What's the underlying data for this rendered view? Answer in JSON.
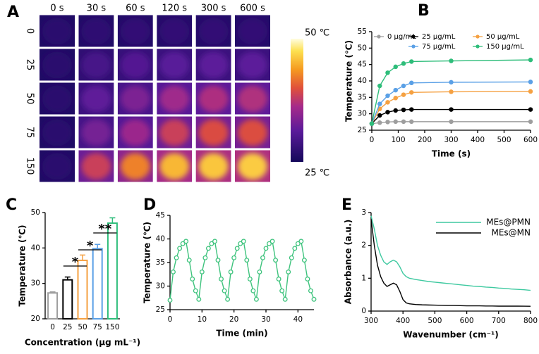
{
  "chart_data": [
    {
      "type": "thermal-grid",
      "label": "A",
      "columns": [
        "0 s",
        "30 s",
        "60 s",
        "120 s",
        "300 s",
        "600 s"
      ],
      "rows": [
        "0",
        "25",
        "50",
        "75",
        "150"
      ],
      "colorbar_labels": [
        "50 ℃",
        "25 ℃"
      ]
    },
    {
      "type": "line",
      "label": "B",
      "xlabel": "Time (s)",
      "ylabel": "Temperature (℃)",
      "x": [
        0,
        30,
        60,
        90,
        120,
        150,
        300,
        600
      ],
      "xlim": [
        0,
        600
      ],
      "xticks": [
        0,
        100,
        200,
        300,
        400,
        500,
        600
      ],
      "ylim": [
        25,
        55
      ],
      "yticks": [
        25,
        30,
        35,
        40,
        45,
        50,
        55
      ],
      "marker_style": "filled",
      "series": [
        {
          "name": "0 μg/mL",
          "color": "#9e9e9e",
          "values": [
            27,
            27.3,
            27.5,
            27.6,
            27.6,
            27.6,
            27.6,
            27.6
          ]
        },
        {
          "name": "25 μg/mL",
          "color": "#000000",
          "values": [
            27,
            29.5,
            30.5,
            31,
            31.2,
            31.3,
            31.3,
            31.3
          ]
        },
        {
          "name": "50 μg/mL",
          "color": "#f5a142",
          "values": [
            27,
            31.5,
            33.5,
            34.8,
            35.8,
            36.5,
            36.7,
            36.8
          ]
        },
        {
          "name": "75 μg/mL",
          "color": "#5aa0e6",
          "values": [
            27,
            33,
            35.5,
            37.2,
            38.5,
            39.4,
            39.6,
            39.7
          ]
        },
        {
          "name": "150 μg/mL",
          "color": "#2ebd7a",
          "values": [
            27,
            38.5,
            42.5,
            44.3,
            45.3,
            45.9,
            46.1,
            46.4
          ]
        }
      ]
    },
    {
      "type": "bar",
      "label": "C",
      "xlabel": "Concentration (μg mL⁻¹)",
      "ylabel": "Temperature (℃)",
      "categories": [
        "0",
        "25",
        "50",
        "75",
        "150"
      ],
      "values": [
        27.3,
        31,
        36.5,
        39.8,
        47
      ],
      "errors": [
        0.3,
        0.8,
        1.5,
        1.2,
        1.5
      ],
      "colors": [
        "#9e9e9e",
        "#000000",
        "#f5a142",
        "#5aa0e6",
        "#2ebd7a"
      ],
      "ylim": [
        20,
        50
      ],
      "yticks": [
        20,
        30,
        40,
        50
      ],
      "annotations": [
        "*",
        "*",
        "**"
      ]
    },
    {
      "type": "line",
      "label": "D",
      "xlabel": "Time (min)",
      "ylabel": "Temperature (℃)",
      "x": [
        0,
        1,
        2,
        3,
        4,
        5,
        6,
        7,
        8,
        9,
        10,
        11,
        12,
        13,
        14,
        15,
        16,
        17,
        18,
        19,
        20,
        21,
        22,
        23,
        24,
        25,
        26,
        27,
        28,
        29,
        30,
        31,
        32,
        33,
        34,
        35,
        36,
        37,
        38,
        39,
        40,
        41,
        42,
        43,
        44,
        45
      ],
      "xlim": [
        0,
        45
      ],
      "xticks": [
        0,
        10,
        20,
        30,
        40
      ],
      "ylim": [
        25,
        45
      ],
      "yticks": [
        25,
        30,
        35,
        40,
        45
      ],
      "marker_style": "hollow",
      "series": [
        {
          "color": "#3ec37d",
          "values": [
            27,
            33,
            36,
            38,
            39,
            39.5,
            35.5,
            31.5,
            29,
            27.2,
            33,
            36,
            38,
            39,
            39.5,
            35.5,
            31.5,
            29,
            27.2,
            33,
            36,
            38,
            39,
            39.5,
            35.5,
            31.5,
            29,
            27.2,
            33,
            36,
            38,
            39,
            39.5,
            35.5,
            31.5,
            29,
            27.2,
            33,
            36,
            38,
            39,
            39.5,
            35.5,
            31.5,
            29,
            27.2
          ]
        }
      ]
    },
    {
      "type": "line",
      "label": "E",
      "xlabel": "Wavenumber (cm⁻¹)",
      "ylabel": "Absorbance (a.u.)",
      "x": [
        300,
        310,
        320,
        330,
        340,
        350,
        360,
        370,
        380,
        390,
        400,
        410,
        420,
        440,
        460,
        480,
        500,
        520,
        540,
        560,
        580,
        600,
        620,
        640,
        660,
        680,
        700,
        720,
        740,
        760,
        780,
        800
      ],
      "xlim": [
        300,
        800
      ],
      "xticks": [
        300,
        400,
        500,
        600,
        700,
        800
      ],
      "ylim": [
        0,
        3
      ],
      "yticks": [
        0,
        1,
        2,
        3
      ],
      "series": [
        {
          "name": "MEs@PMN",
          "color": "#3ec9a0",
          "values": [
            2.9,
            2.5,
            2.0,
            1.7,
            1.5,
            1.42,
            1.5,
            1.55,
            1.5,
            1.35,
            1.15,
            1.05,
            1.0,
            0.96,
            0.93,
            0.9,
            0.88,
            0.86,
            0.84,
            0.82,
            0.8,
            0.78,
            0.76,
            0.75,
            0.73,
            0.72,
            0.7,
            0.69,
            0.67,
            0.66,
            0.65,
            0.63
          ]
        },
        {
          "name": "MEs@MN",
          "color": "#000000",
          "values": [
            2.8,
            2.0,
            1.4,
            1.05,
            0.85,
            0.75,
            0.8,
            0.85,
            0.8,
            0.6,
            0.35,
            0.25,
            0.22,
            0.2,
            0.19,
            0.185,
            0.18,
            0.175,
            0.17,
            0.17,
            0.165,
            0.16,
            0.16,
            0.16,
            0.155,
            0.155,
            0.15,
            0.15,
            0.15,
            0.15,
            0.148,
            0.145
          ]
        }
      ]
    }
  ]
}
